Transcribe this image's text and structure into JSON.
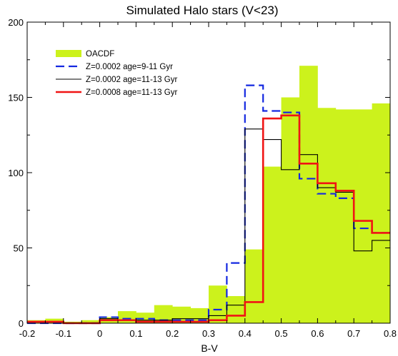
{
  "chart_data": {
    "type": "histogram",
    "title": "Simulated Halo stars (V<23)",
    "xlabel": "B-V",
    "ylabel": "",
    "xlim": [
      -0.2,
      0.8
    ],
    "ylim": [
      0,
      200
    ],
    "x_ticks": [
      -0.2,
      -0.1,
      0,
      0.1,
      0.2,
      0.3,
      0.4,
      0.5,
      0.6,
      0.7,
      0.8
    ],
    "x_tick_labels": [
      "-0.2",
      "-0.1",
      "0",
      "0.1",
      "0.2",
      "0.3",
      "0.4",
      "0.5",
      "0.6",
      "0.7",
      "0.8"
    ],
    "y_ticks": [
      0,
      50,
      100,
      150,
      200
    ],
    "y_tick_labels": [
      "0",
      "50",
      "100",
      "150",
      "200"
    ],
    "legend_position": "upper-left",
    "grid": false,
    "bin_edges": [
      -0.2,
      -0.15,
      -0.1,
      -0.05,
      0.0,
      0.05,
      0.1,
      0.15,
      0.2,
      0.25,
      0.3,
      0.35,
      0.4,
      0.45,
      0.5,
      0.55,
      0.6,
      0.65,
      0.7,
      0.75,
      0.8
    ],
    "series": [
      {
        "name": "OACDF",
        "style": "filled",
        "color": "#ccf21c",
        "values": [
          2,
          3,
          1,
          2,
          4,
          8,
          7,
          12,
          11,
          10,
          25,
          18,
          49,
          104,
          150,
          171,
          143,
          142,
          142,
          146
        ]
      },
      {
        "name": "Z=0.0002 age=9-11 Gyr",
        "style": "dashed",
        "color": "#1428e0",
        "values": [
          0,
          0,
          0,
          0,
          4,
          3,
          3,
          2,
          2,
          2,
          9,
          40,
          158,
          141,
          140,
          96,
          86,
          83,
          63,
          60
        ]
      },
      {
        "name": "Z=0.0002 age=11-13 Gyr",
        "style": "thin",
        "color": "#000000",
        "values": [
          0,
          0,
          0,
          0,
          3,
          2,
          2,
          2,
          3,
          3,
          5,
          12,
          129,
          122,
          102,
          112,
          90,
          87,
          48,
          55
        ]
      },
      {
        "name": "Z=0.0008 age=11-13 Gyr",
        "style": "thick",
        "color": "#f01414",
        "values": [
          1,
          1,
          0,
          0,
          2,
          2,
          1,
          1,
          1,
          1,
          2,
          5,
          14,
          136,
          138,
          106,
          93,
          88,
          68,
          60
        ]
      }
    ]
  }
}
